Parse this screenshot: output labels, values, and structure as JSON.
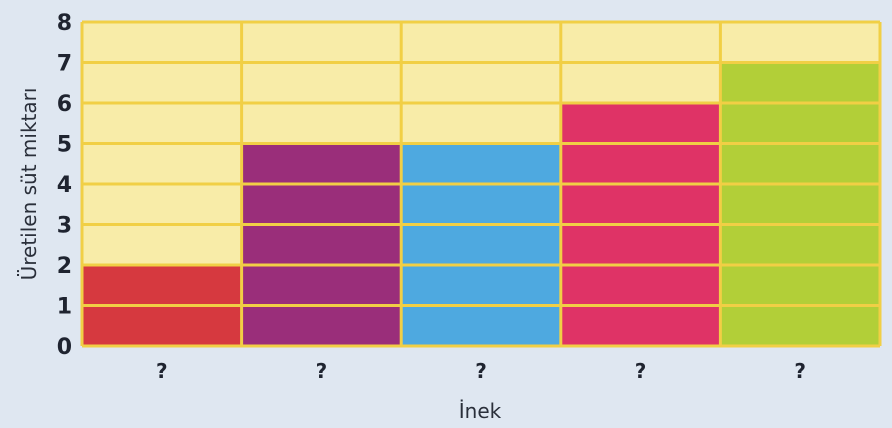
{
  "chart_data": {
    "type": "bar",
    "categories": [
      "?",
      "?",
      "?",
      "?",
      "?"
    ],
    "values": [
      2,
      5,
      5,
      6,
      7
    ],
    "xlabel": "İnek",
    "ylabel": "Üretilen süt miktarı",
    "ylim": [
      0,
      8
    ],
    "yticks": [
      0,
      1,
      2,
      3,
      4,
      5,
      6,
      7,
      8
    ],
    "grid": true,
    "bar_colors": [
      "#d6393f",
      "#9a2e7a",
      "#4ea9e0",
      "#df3366",
      "#b2cf38"
    ],
    "cell_fill": "#f8eca8",
    "grid_line_color": "#f1cf45"
  }
}
